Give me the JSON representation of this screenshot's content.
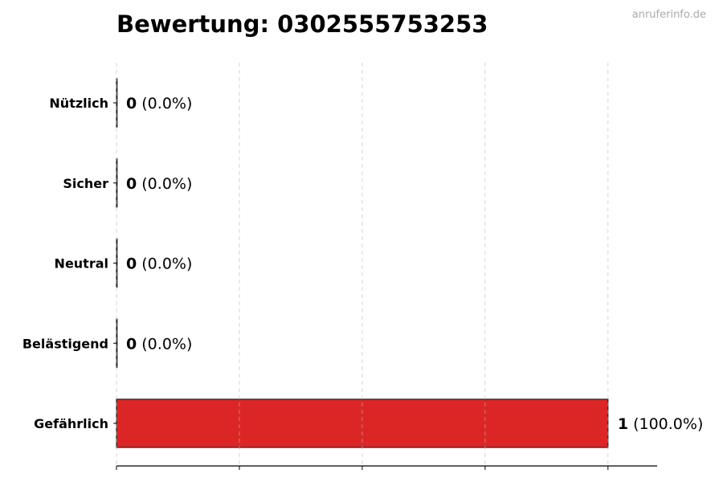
{
  "chart_data": {
    "type": "bar",
    "orientation": "horizontal",
    "title": "Bewertung: 0302555753253",
    "watermark": "anruferinfo.de",
    "categories": [
      "Nützlich",
      "Sicher",
      "Neutral",
      "Belästigend",
      "Gefährlich"
    ],
    "values": [
      0,
      0,
      0,
      0,
      1
    ],
    "value_labels": [
      "0",
      "0",
      "0",
      "0",
      "1"
    ],
    "percent_labels": [
      "(0.0%)",
      "(0.0%)",
      "(0.0%)",
      "(0.0%)",
      "(100.0%)"
    ],
    "colors": [
      "#2e7d32",
      "#43a047",
      "#9e9e9e",
      "#f57c00",
      "#dc2626"
    ],
    "xlim": [
      0,
      1.1
    ],
    "xticks": [
      0,
      0.25,
      0.5,
      0.75,
      1.0
    ],
    "grid": "x dashed",
    "xlabel": "",
    "ylabel": ""
  }
}
